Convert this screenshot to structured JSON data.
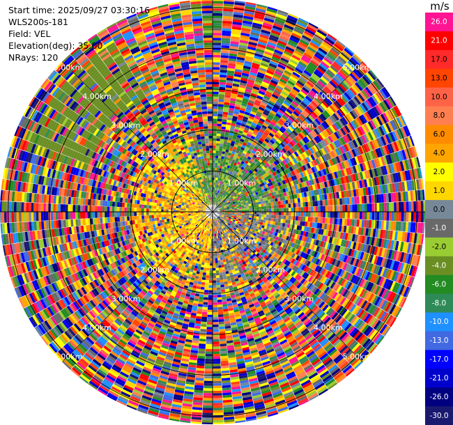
{
  "info": {
    "start_time": "Start time: 2025/09/27 03:30:16",
    "station": "WLS200s-181",
    "field": "Field: VEL",
    "elevation": "Elevation(deg): 35.00",
    "nrays": "NRays: 120"
  },
  "range_rings": [
    {
      "km": 1,
      "label": "1.00km"
    },
    {
      "km": 2,
      "label": "2.00km"
    },
    {
      "km": 3,
      "label": "3.00km"
    },
    {
      "km": 4,
      "label": "4.00km"
    },
    {
      "km": 5,
      "label": "5.00km"
    }
  ],
  "colorbar": {
    "unit": "m/s",
    "bins": [
      {
        "label": "26.0",
        "color": "#ff1493"
      },
      {
        "label": "21.0",
        "color": "#ff0000"
      },
      {
        "label": "17.0",
        "color": "#ff2a2a"
      },
      {
        "label": "13.0",
        "color": "#ff4500"
      },
      {
        "label": "10.0",
        "color": "#ff6347"
      },
      {
        "label": "8.0",
        "color": "#ff7f50"
      },
      {
        "label": "6.0",
        "color": "#ff8c00"
      },
      {
        "label": "4.0",
        "color": "#ffa500"
      },
      {
        "label": "2.0",
        "color": "#ffff00"
      },
      {
        "label": "1.0",
        "color": "#ffd700"
      },
      {
        "label": "0.0",
        "color": "#778899"
      },
      {
        "label": "-1.0",
        "color": "#696969"
      },
      {
        "label": "-2.0",
        "color": "#9acd32"
      },
      {
        "label": "-4.0",
        "color": "#6b8e23"
      },
      {
        "label": "-6.0",
        "color": "#228b22"
      },
      {
        "label": "-8.0",
        "color": "#2e8b57"
      },
      {
        "label": "-10.0",
        "color": "#1e90ff"
      },
      {
        "label": "-13.0",
        "color": "#4169e1"
      },
      {
        "label": "-17.0",
        "color": "#0000ff"
      },
      {
        "label": "-21.0",
        "color": "#0000cd"
      },
      {
        "label": "-26.0",
        "color": "#000080"
      },
      {
        "label": "-30.0",
        "color": "#191970"
      }
    ]
  }
}
